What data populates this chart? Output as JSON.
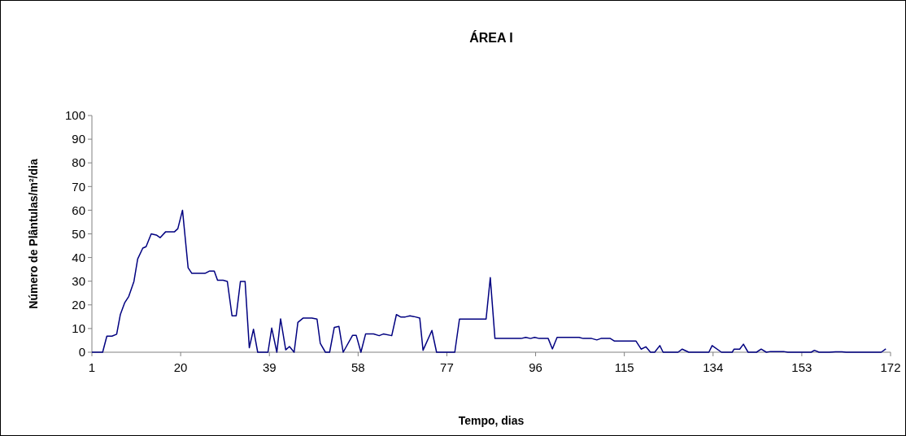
{
  "chart_data": {
    "type": "line",
    "title": "ÁREA I",
    "xlabel": "Tempo, dias",
    "ylabel": "Número de Plântulas/m²/dia",
    "xlim": [
      1,
      172
    ],
    "xticks": [
      1,
      20,
      39,
      58,
      77,
      96,
      115,
      134,
      153,
      172
    ],
    "ylim": [
      0,
      100
    ],
    "yticks": [
      0,
      10,
      20,
      30,
      40,
      50,
      60,
      70,
      80,
      90,
      100
    ],
    "grid": false,
    "marker": "none",
    "line_style": "solid",
    "series": [
      {
        "color": "#000080",
        "x": [
          1,
          3.3,
          4.2,
          5.3,
          6.3,
          7.1,
          8,
          8.9,
          10,
          10.8,
          11.9,
          12.6,
          13.7,
          14.8,
          15.6,
          16.8,
          18.7,
          19.4,
          20.4,
          21.6,
          22.4,
          25.2,
          26.2,
          27.2,
          27.9,
          29.1,
          30,
          31,
          31.9,
          32.8,
          33.8,
          34.7,
          35.6,
          36.5,
          38.7,
          39.5,
          40.6,
          41.4,
          42.5,
          43.3,
          44.3,
          45.1,
          46.2,
          48.1,
          49.2,
          49.9,
          51,
          51.9,
          52.9,
          53.9,
          54.8,
          56.8,
          57.6,
          58.6,
          59.6,
          61.3,
          62.5,
          63.4,
          65.2,
          66.2,
          67.1,
          68.1,
          69.1,
          70.3,
          71.2,
          71.9,
          73.8,
          74.8,
          78.7,
          79.7,
          85.4,
          86.3,
          87.3,
          92.9,
          93.9,
          94.9,
          95.8,
          96.8,
          98.7,
          99.6,
          100.6,
          105.3,
          106.2,
          108,
          109.1,
          110,
          112,
          112.9,
          117.5,
          118.6,
          119.6,
          120.6,
          121.5,
          122.6,
          123.3,
          126.5,
          127.4,
          128.8,
          133.1,
          133.8,
          135.8,
          138.1,
          138.5,
          139.7,
          140.5,
          141.5,
          143.3,
          144.3,
          145.4,
          146.3,
          147.7,
          149.1,
          150,
          155,
          155.7,
          156.7,
          158.9,
          160.2,
          161.6,
          162.5,
          170,
          171
        ],
        "values": [
          0,
          0,
          6.8,
          6.8,
          7.6,
          16,
          20.8,
          23.6,
          29.9,
          39.4,
          44,
          44.6,
          50,
          49.5,
          48.4,
          50.9,
          50.9,
          52.2,
          60,
          35.7,
          33.3,
          33.3,
          34.3,
          34.3,
          30.4,
          30.4,
          29.9,
          15.4,
          15.4,
          29.9,
          29.9,
          1.9,
          9.7,
          0,
          0,
          10.2,
          0,
          14.1,
          1,
          2.4,
          0,
          12.6,
          14.4,
          14.4,
          14,
          3.7,
          0,
          0,
          10.5,
          10.9,
          0,
          7.1,
          7.1,
          0,
          7.7,
          7.7,
          7,
          7.7,
          7,
          15.9,
          14.9,
          14.9,
          15.4,
          14.9,
          14.4,
          0.8,
          9.2,
          0,
          0,
          14,
          14,
          31.5,
          5.8,
          5.8,
          6.3,
          5.8,
          6.3,
          5.8,
          5.8,
          1.4,
          6.3,
          6.3,
          5.8,
          5.8,
          5.2,
          5.8,
          5.8,
          4.7,
          4.7,
          1.3,
          2.3,
          0,
          0,
          2.8,
          0,
          0,
          1.3,
          0,
          0,
          2.8,
          0,
          0,
          1.3,
          1.3,
          3.4,
          0,
          0,
          1.3,
          0,
          0.3,
          0.3,
          0.3,
          0,
          0,
          0.8,
          0,
          0,
          0.2,
          0.2,
          0,
          0,
          1.4
        ]
      }
    ]
  }
}
